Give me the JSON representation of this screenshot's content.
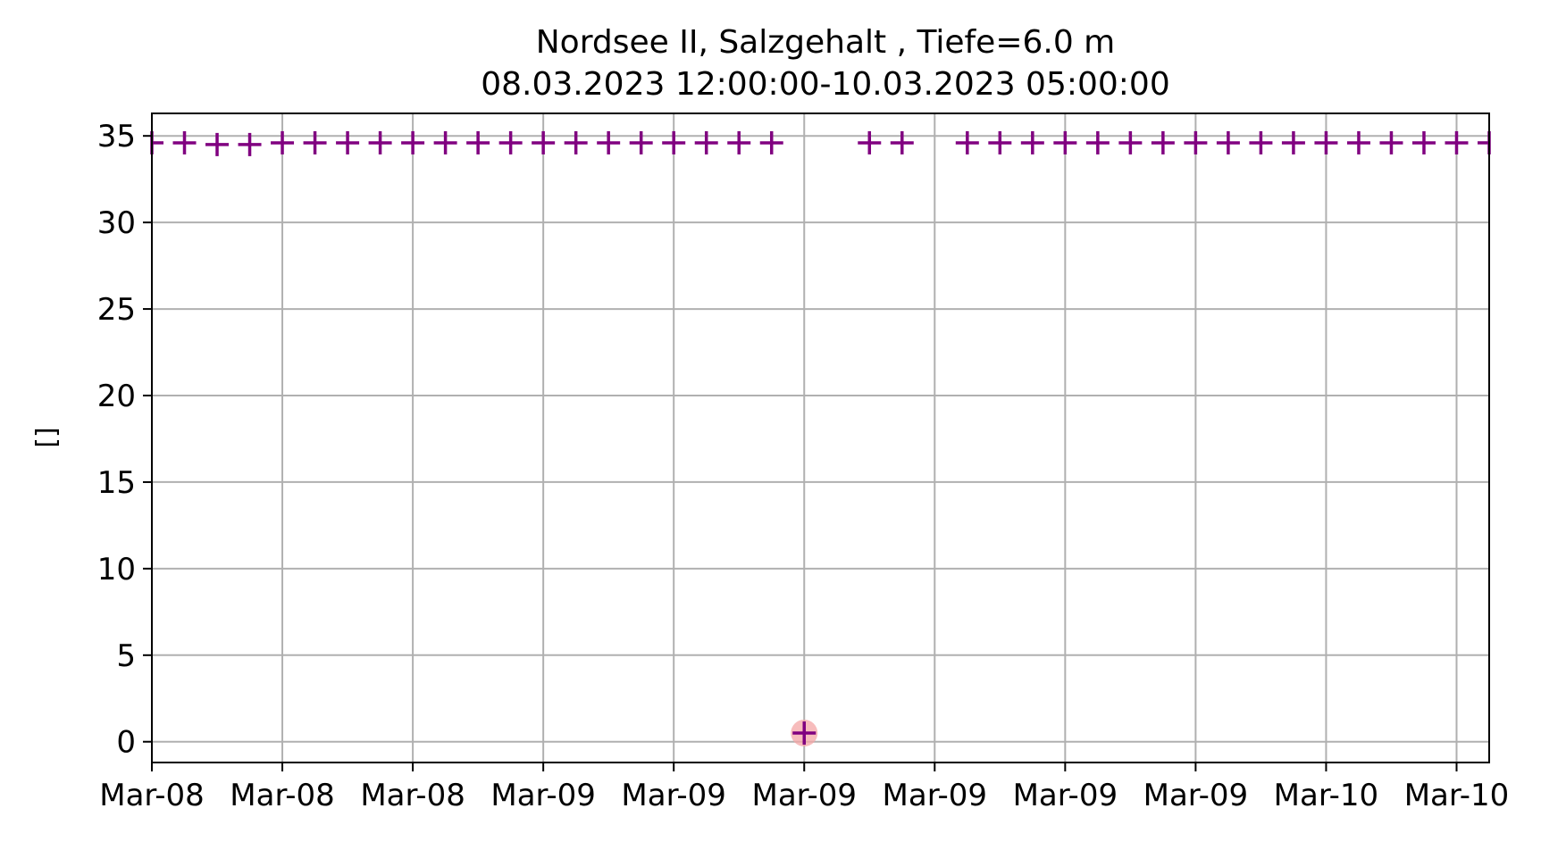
{
  "chart_data": {
    "type": "scatter",
    "title": "Nordsee II, Salzgehalt , Tiefe=6.0 m",
    "subtitle": "08.03.2023 12:00:00-10.03.2023 05:00:00",
    "xlabel": "",
    "ylabel": "[]",
    "x_start": "2023-03-08 12:00",
    "x_end": "2023-03-10 05:00",
    "xlim": [
      "2023-03-08 12:00",
      "2023-03-10 05:00"
    ],
    "ylim": [
      -1.2,
      36.3
    ],
    "grid": true,
    "marker": "+",
    "marker_color": "#800080",
    "highlight_color": "#f4a6a6",
    "x_ticks": [
      {
        "x": "2023-03-08 12:00",
        "label": "Mar-08"
      },
      {
        "x": "2023-03-08 16:00",
        "label": "Mar-08"
      },
      {
        "x": "2023-03-08 20:00",
        "label": "Mar-08"
      },
      {
        "x": "2023-03-09 00:00",
        "label": "Mar-09"
      },
      {
        "x": "2023-03-09 04:00",
        "label": "Mar-09"
      },
      {
        "x": "2023-03-09 08:00",
        "label": "Mar-09"
      },
      {
        "x": "2023-03-09 12:00",
        "label": "Mar-09"
      },
      {
        "x": "2023-03-09 16:00",
        "label": "Mar-09"
      },
      {
        "x": "2023-03-09 20:00",
        "label": "Mar-09"
      },
      {
        "x": "2023-03-10 00:00",
        "label": "Mar-10"
      },
      {
        "x": "2023-03-10 04:00",
        "label": "Mar-10"
      }
    ],
    "y_ticks": [
      0,
      5,
      10,
      15,
      20,
      25,
      30,
      35
    ],
    "points": [
      {
        "x": "2023-03-08 12:00",
        "y": 34.6
      },
      {
        "x": "2023-03-08 13:00",
        "y": 34.6
      },
      {
        "x": "2023-03-08 14:00",
        "y": 34.5
      },
      {
        "x": "2023-03-08 15:00",
        "y": 34.5
      },
      {
        "x": "2023-03-08 16:00",
        "y": 34.6
      },
      {
        "x": "2023-03-08 17:00",
        "y": 34.6
      },
      {
        "x": "2023-03-08 18:00",
        "y": 34.6
      },
      {
        "x": "2023-03-08 19:00",
        "y": 34.6
      },
      {
        "x": "2023-03-08 20:00",
        "y": 34.6
      },
      {
        "x": "2023-03-08 21:00",
        "y": 34.6
      },
      {
        "x": "2023-03-08 22:00",
        "y": 34.6
      },
      {
        "x": "2023-03-08 23:00",
        "y": 34.6
      },
      {
        "x": "2023-03-09 00:00",
        "y": 34.6
      },
      {
        "x": "2023-03-09 01:00",
        "y": 34.6
      },
      {
        "x": "2023-03-09 02:00",
        "y": 34.6
      },
      {
        "x": "2023-03-09 03:00",
        "y": 34.6
      },
      {
        "x": "2023-03-09 04:00",
        "y": 34.6
      },
      {
        "x": "2023-03-09 05:00",
        "y": 34.6
      },
      {
        "x": "2023-03-09 06:00",
        "y": 34.6
      },
      {
        "x": "2023-03-09 07:00",
        "y": 34.6
      },
      {
        "x": "2023-03-09 08:00",
        "y": 0.5,
        "highlight": true
      },
      {
        "x": "2023-03-09 10:00",
        "y": 34.6
      },
      {
        "x": "2023-03-09 11:00",
        "y": 34.6
      },
      {
        "x": "2023-03-09 13:00",
        "y": 34.6
      },
      {
        "x": "2023-03-09 14:00",
        "y": 34.6
      },
      {
        "x": "2023-03-09 15:00",
        "y": 34.6
      },
      {
        "x": "2023-03-09 16:00",
        "y": 34.6
      },
      {
        "x": "2023-03-09 17:00",
        "y": 34.6
      },
      {
        "x": "2023-03-09 18:00",
        "y": 34.6
      },
      {
        "x": "2023-03-09 19:00",
        "y": 34.6
      },
      {
        "x": "2023-03-09 20:00",
        "y": 34.6
      },
      {
        "x": "2023-03-09 21:00",
        "y": 34.6
      },
      {
        "x": "2023-03-09 22:00",
        "y": 34.6
      },
      {
        "x": "2023-03-09 23:00",
        "y": 34.6
      },
      {
        "x": "2023-03-10 00:00",
        "y": 34.6
      },
      {
        "x": "2023-03-10 01:00",
        "y": 34.6
      },
      {
        "x": "2023-03-10 02:00",
        "y": 34.6
      },
      {
        "x": "2023-03-10 03:00",
        "y": 34.6
      },
      {
        "x": "2023-03-10 04:00",
        "y": 34.6
      },
      {
        "x": "2023-03-10 05:00",
        "y": 34.6
      }
    ]
  }
}
